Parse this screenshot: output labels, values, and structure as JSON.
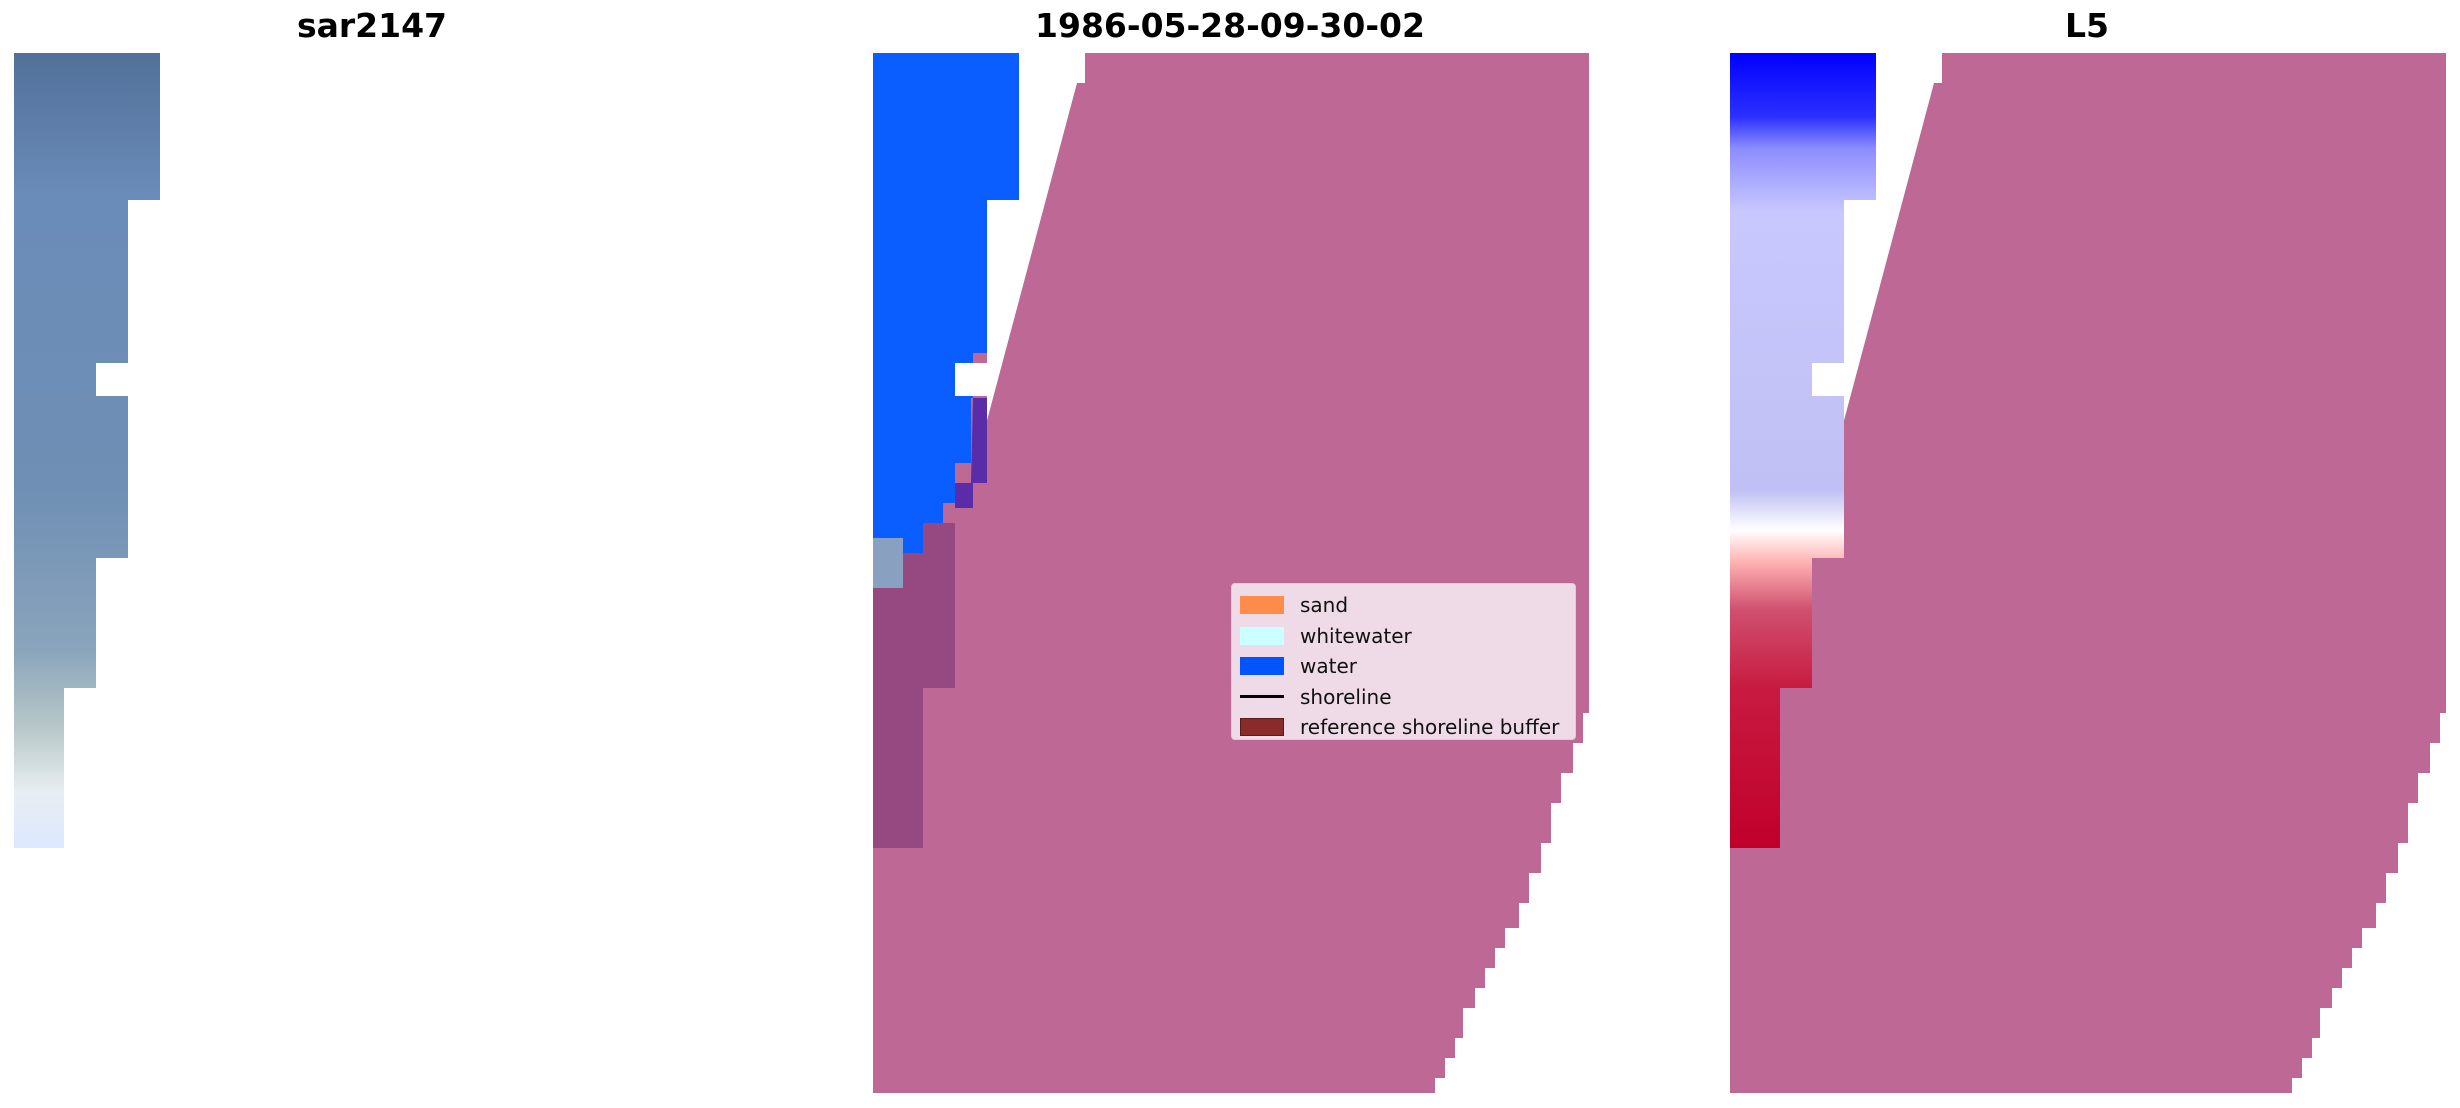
{
  "panels": [
    {
      "title": "sar2147"
    },
    {
      "title": "1986-05-28-09-30-02"
    },
    {
      "title": "L5"
    }
  ],
  "legend": {
    "items": [
      {
        "label": "sand",
        "color": "#ff8c4a",
        "kind": "patch"
      },
      {
        "label": "whitewater",
        "color": "#ccffff",
        "kind": "patch"
      },
      {
        "label": "water",
        "color": "#0055ff",
        "kind": "patch"
      },
      {
        "label": "shoreline",
        "color": "#000000",
        "kind": "line"
      },
      {
        "label": "reference shoreline buffer",
        "color": "#8b2a2a",
        "kind": "patch"
      }
    ]
  },
  "colors": {
    "buffer_overlay": "#bd6895",
    "water_classified": "#0a5eff",
    "rgb_water": "#5a78a0",
    "index_water_blue": "#0000ff",
    "index_land_red": "#c0002a"
  }
}
